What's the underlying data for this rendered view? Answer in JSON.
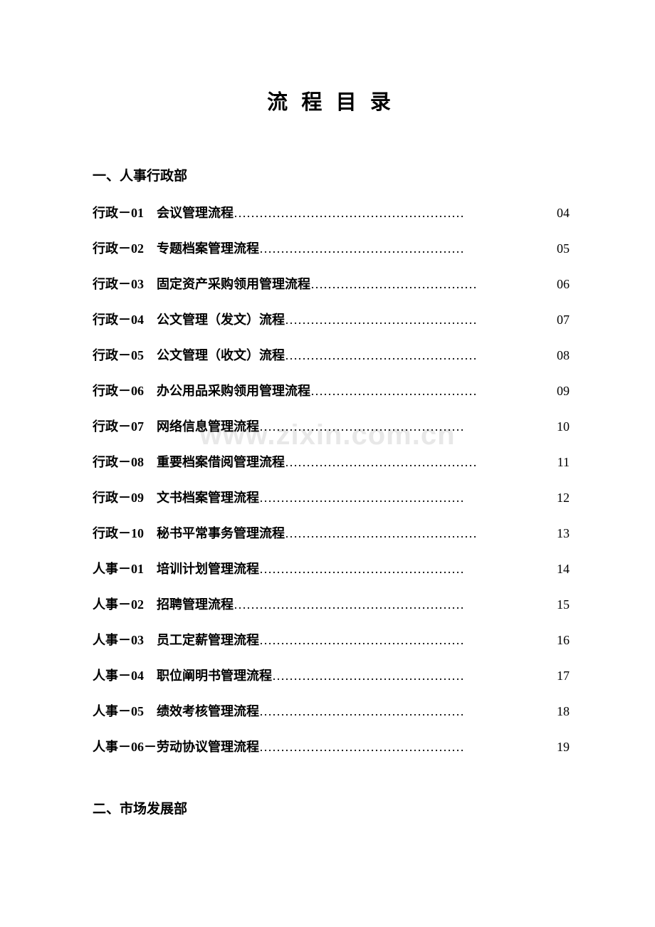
{
  "title": "流 程 目 录",
  "watermark": "www.zixin.com.cn",
  "sections": [
    {
      "heading": "一、人事行政部",
      "items": [
        {
          "code": "行政－01",
          "label": "会议管理流程",
          "page": "04"
        },
        {
          "code": "行政－02",
          "label": "专题档案管理流程",
          "page": "05"
        },
        {
          "code": "行政－03",
          "label": "固定资产采购领用管理流程",
          "page": "06"
        },
        {
          "code": "行政－04",
          "label": "公文管理（发文）流程",
          "page": "07"
        },
        {
          "code": "行政－05",
          "label": "公文管理（收文）流程",
          "page": "08"
        },
        {
          "code": "行政－06",
          "label": "办公用品采购领用管理流程",
          "page": "09"
        },
        {
          "code": "行政－07",
          "label": "网络信息管理流程",
          "page": "10"
        },
        {
          "code": "行政－08",
          "label": "重要档案借阅管理流程",
          "page": "11"
        },
        {
          "code": "行政－09",
          "label": "文书档案管理流程",
          "page": "12"
        },
        {
          "code": "行政－10",
          "label": "秘书平常事务管理流程",
          "page": "13"
        },
        {
          "code": "人事－01",
          "label": "培训计划管理流程",
          "page": "14"
        },
        {
          "code": "人事－02",
          "label": "招聘管理流程",
          "page": "15"
        },
        {
          "code": "人事－03",
          "label": "员工定薪管理流程",
          "page": "16"
        },
        {
          "code": "人事－04",
          "label": "职位阐明书管理流程",
          "page": "17"
        },
        {
          "code": "人事－05",
          "label": "绩效考核管理流程",
          "page": "18"
        }
      ],
      "combined_item": {
        "label": "人事－06－劳动协议管理流程",
        "page": "19"
      }
    },
    {
      "heading": "二、市场发展部",
      "items": []
    }
  ],
  "colors": {
    "text": "#000000",
    "background": "#ffffff",
    "watermark": "#e8e8e8"
  },
  "typography": {
    "title_fontsize": 29,
    "heading_fontsize": 19,
    "line_fontsize": 18
  }
}
